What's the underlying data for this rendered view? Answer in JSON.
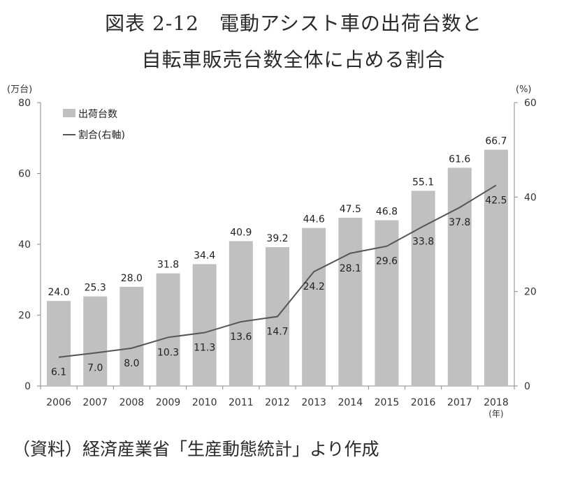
{
  "header": {
    "title_line1": "図表 2-12　電動アシスト車の出荷台数と",
    "title_line2": "自転車販売台数全体に占める割合"
  },
  "source_note": "（資料）経済産業省「生産動態統計」より作成",
  "chart_data": {
    "type": "bar",
    "title": "図表 2-12　電動アシスト車の出荷台数と自転車販売台数全体に占める割合",
    "categories": [
      "2006",
      "2007",
      "2008",
      "2009",
      "2010",
      "2011",
      "2012",
      "2013",
      "2014",
      "2015",
      "2016",
      "2017",
      "2018"
    ],
    "x_unit": "(年)",
    "y_left": {
      "unit": "(万台)",
      "min": 0,
      "max": 80,
      "ticks": [
        0,
        20,
        40,
        60,
        80
      ]
    },
    "y_right": {
      "unit": "(%)",
      "min": 0,
      "max": 60,
      "ticks": [
        0,
        20,
        40,
        60
      ]
    },
    "series": [
      {
        "name": "出荷台数",
        "kind": "bar",
        "axis": "left",
        "color": "#c0c0c0",
        "values": [
          24.0,
          25.3,
          28.0,
          31.8,
          34.4,
          40.9,
          39.2,
          44.6,
          47.5,
          46.8,
          55.1,
          61.6,
          66.7
        ]
      },
      {
        "name": "割合(右軸)",
        "kind": "line",
        "axis": "right",
        "color": "#555555",
        "values": [
          6.1,
          7.0,
          8.0,
          10.3,
          11.3,
          13.6,
          14.7,
          24.2,
          28.1,
          29.6,
          33.8,
          37.8,
          42.5
        ]
      }
    ],
    "legend": {
      "position": "top-left",
      "entries": [
        "出荷台数",
        "割合(右軸)"
      ]
    },
    "grid": false
  }
}
